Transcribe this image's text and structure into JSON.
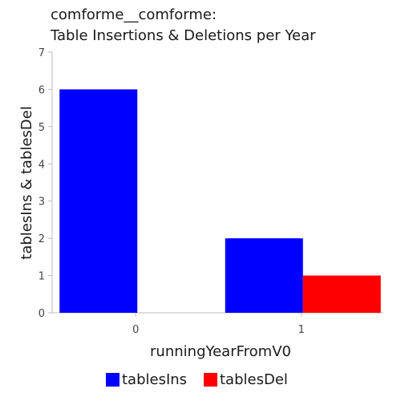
{
  "chart_data": {
    "type": "bar",
    "title_lines": [
      "comforme__comforme:",
      "Table Insertions & Deletions per Year"
    ],
    "xlabel": "runningYearFromV0",
    "ylabel": "tablesIns & tablesDel",
    "categories": [
      "0",
      "1"
    ],
    "series": [
      {
        "name": "tablesIns",
        "values": [
          6,
          2
        ],
        "color": "#0000ff"
      },
      {
        "name": "tablesDel",
        "values": [
          0,
          1
        ],
        "color": "#ff0000"
      }
    ],
    "ylim": [
      0,
      7
    ],
    "yticks": [
      "0",
      "1",
      "2",
      "3",
      "4",
      "5",
      "6",
      "7"
    ],
    "grid": false,
    "legend_position": "bottom"
  }
}
